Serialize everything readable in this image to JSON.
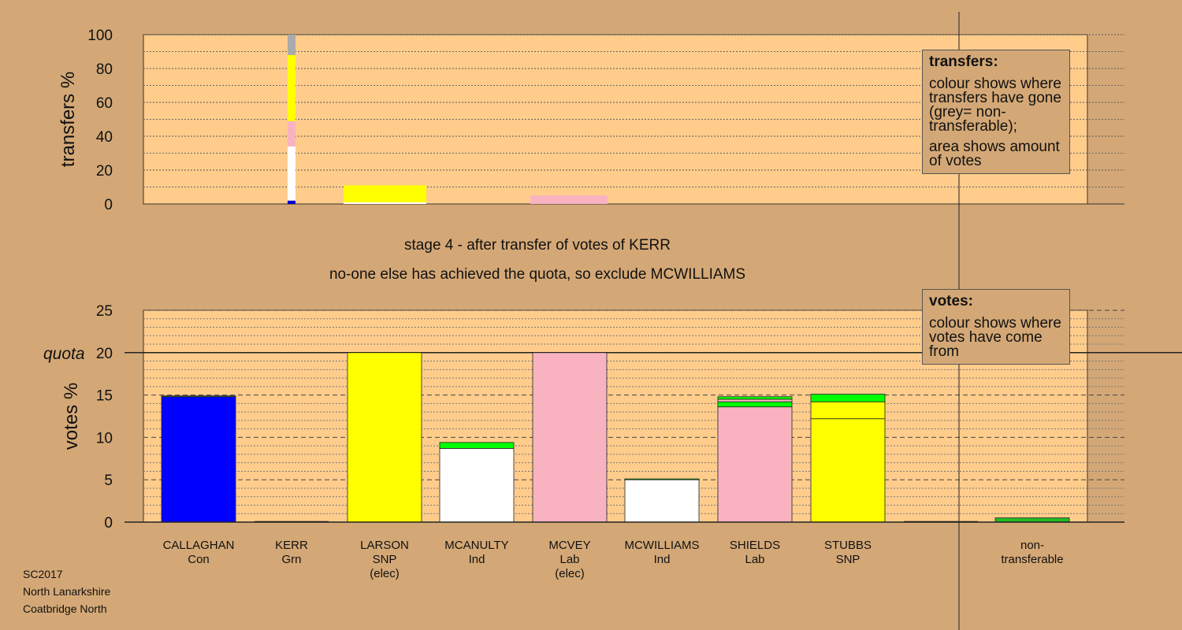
{
  "chart_data": [
    {
      "type": "bar",
      "stacked": true,
      "ylabel": "transfers %",
      "ylim": [
        0,
        100
      ],
      "yticks": [
        0,
        20,
        40,
        60,
        80,
        100
      ],
      "grid": true,
      "bars": [
        {
          "segments": [
            {
              "color": "#0000cc",
              "value": 2
            },
            {
              "color": "#ffffff",
              "value": 32
            },
            {
              "color": "#f9b3c0",
              "value": 15
            },
            {
              "color": "#ffff00",
              "value": 39
            },
            {
              "color": "#aaaaaa",
              "value": 12
            }
          ]
        },
        {
          "segments": [
            {
              "color": "#ffffff",
              "value": 1
            },
            {
              "color": "#ffff00",
              "value": 10
            }
          ]
        },
        {
          "segments": [
            {
              "color": "#f9b3c0",
              "value": 5
            }
          ]
        }
      ]
    },
    {
      "type": "bar",
      "stacked": true,
      "ylabel": "votes %",
      "ylim": [
        0,
        25
      ],
      "yticks": [
        0,
        5,
        10,
        15,
        20,
        25
      ],
      "quota": 20,
      "quota_label": "quota",
      "grid": true,
      "categories": [
        {
          "name": "CALLAGHAN",
          "party": "Con",
          "note": ""
        },
        {
          "name": "KERR",
          "party": "Grn",
          "note": ""
        },
        {
          "name": "LARSON",
          "party": "SNP",
          "note": "(elec)"
        },
        {
          "name": "MCANULTY",
          "party": "Ind",
          "note": ""
        },
        {
          "name": "MCVEY",
          "party": "Lab",
          "note": "(elec)"
        },
        {
          "name": "MCWILLIAMS",
          "party": "Ind",
          "note": ""
        },
        {
          "name": "SHIELDS",
          "party": "Lab",
          "note": ""
        },
        {
          "name": "STUBBS",
          "party": "SNP",
          "note": ""
        },
        {
          "name": "",
          "party": "",
          "note": ""
        },
        {
          "name": "non-",
          "party": "transferable",
          "note": ""
        }
      ],
      "bars": [
        {
          "segments": [
            {
              "color": "#0000ff",
              "value": 14.8
            },
            {
              "color": "#22aa22",
              "value": 0.1
            }
          ]
        },
        {
          "segments": []
        },
        {
          "segments": [
            {
              "color": "#ffff00",
              "value": 20
            }
          ]
        },
        {
          "segments": [
            {
              "color": "#ffffff",
              "value": 8.7
            },
            {
              "color": "#00ff00",
              "value": 0.7
            }
          ]
        },
        {
          "segments": [
            {
              "color": "#f9b3c0",
              "value": 20
            }
          ]
        },
        {
          "segments": [
            {
              "color": "#ffffff",
              "value": 5.0
            },
            {
              "color": "#00ff00",
              "value": 0.1
            }
          ]
        },
        {
          "segments": [
            {
              "color": "#f9b3c0",
              "value": 13.6
            },
            {
              "color": "#00ff00",
              "value": 0.6
            },
            {
              "color": "#f9b3c0",
              "value": 0.3
            },
            {
              "color": "#00ff00",
              "value": 0.3
            }
          ]
        },
        {
          "segments": [
            {
              "color": "#ffff00",
              "value": 12.2
            },
            {
              "color": "#ffff00",
              "value": 2.0
            },
            {
              "color": "#00ff00",
              "value": 0.9
            }
          ]
        },
        {
          "segments": []
        },
        {
          "segments": [
            {
              "color": "#22bb22",
              "value": 0.5
            }
          ]
        }
      ]
    }
  ],
  "legend_transfers": {
    "title": "transfers:",
    "lines": [
      "colour shows where transfers have gone (grey= non-transferable);",
      "area shows amount of votes"
    ]
  },
  "legend_votes": {
    "title": "votes:",
    "lines": [
      "colour shows where votes have come from"
    ]
  },
  "stage_line1": "stage 4 - after transfer of votes of KERR",
  "stage_line2": "no-one else has achieved the quota, so exclude MCWILLIAMS",
  "footer": {
    "line1": "SC2017",
    "line2": "North Lanarkshire",
    "line3": "Coatbridge North"
  },
  "colors": {
    "background": "#d4a876",
    "plot_area": "#ffcc8c"
  }
}
